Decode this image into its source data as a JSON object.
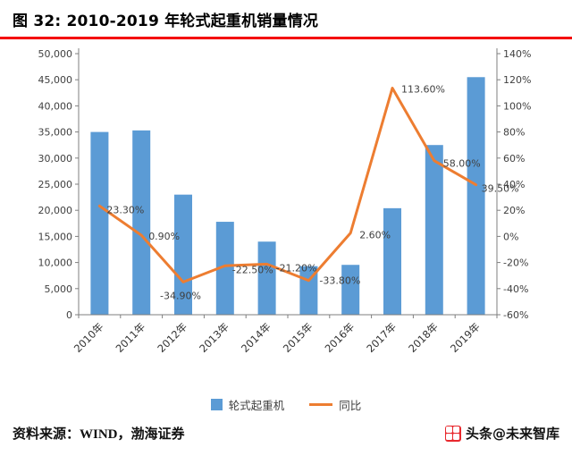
{
  "header": {
    "title": "图 32:  2010-2019 年轮式起重机销量情况"
  },
  "chart_data": {
    "type": "bar",
    "subtype": "combo-bar-line",
    "title": "2010-2019 年轮式起重机销量情况",
    "categories": [
      "2010年",
      "2011年",
      "2012年",
      "2013年",
      "2014年",
      "2015年",
      "2016年",
      "2017年",
      "2018年",
      "2019年"
    ],
    "series": [
      {
        "name": "轮式起重机",
        "type": "bar",
        "axis": "left",
        "color": "#5B9BD5",
        "values": [
          35000,
          35300,
          23000,
          17800,
          14000,
          9300,
          9550,
          20400,
          32500,
          45500
        ]
      },
      {
        "name": "同比",
        "type": "line",
        "axis": "right",
        "color": "#ED7D31",
        "values": [
          23.3,
          0.9,
          -34.9,
          -22.5,
          -21.2,
          -33.8,
          2.6,
          113.6,
          58.0,
          39.5
        ],
        "point_labels": [
          "23.30%",
          "0.90%",
          "-34.90%",
          "-22.50%",
          "-21.20%",
          "-33.80%",
          "2.60%",
          "113.60%",
          "58.00%",
          "39.50%"
        ],
        "label_offsets": [
          [
            8,
            5
          ],
          [
            8,
            2
          ],
          [
            -26,
            16
          ],
          [
            8,
            5
          ],
          [
            10,
            5
          ],
          [
            12,
            1
          ],
          [
            10,
            3
          ],
          [
            10,
            2
          ],
          [
            10,
            4
          ],
          [
            6,
            5
          ]
        ]
      }
    ],
    "left_axis": {
      "min": 0,
      "max": 50000,
      "step": 5000,
      "tick_labels": [
        "0",
        "5,000",
        "10,000",
        "15,000",
        "20,000",
        "25,000",
        "30,000",
        "35,000",
        "40,000",
        "45,000",
        "50,000"
      ]
    },
    "right_axis": {
      "min": -60,
      "max": 140,
      "step": 20,
      "tick_labels": [
        "-60%",
        "-40%",
        "-20%",
        "0%",
        "20%",
        "40%",
        "60%",
        "80%",
        "100%",
        "120%",
        "140%"
      ]
    },
    "grid": false,
    "legend_position": "bottom"
  },
  "legend": {
    "items": [
      {
        "label": "轮式起重机",
        "color": "#5B9BD5",
        "type": "bar"
      },
      {
        "label": "同比",
        "color": "#ED7D31",
        "type": "line"
      }
    ]
  },
  "footer": {
    "source": "资料来源：WIND，渤海证券",
    "watermark": "头条@未来智库"
  },
  "colors": {
    "bar": "#5B9BD5",
    "line": "#ED7D31",
    "title_rule": "#f40000",
    "axis": "#7f7f7f",
    "tick_text": "#404040",
    "watermark_logo": "#e8282d"
  }
}
